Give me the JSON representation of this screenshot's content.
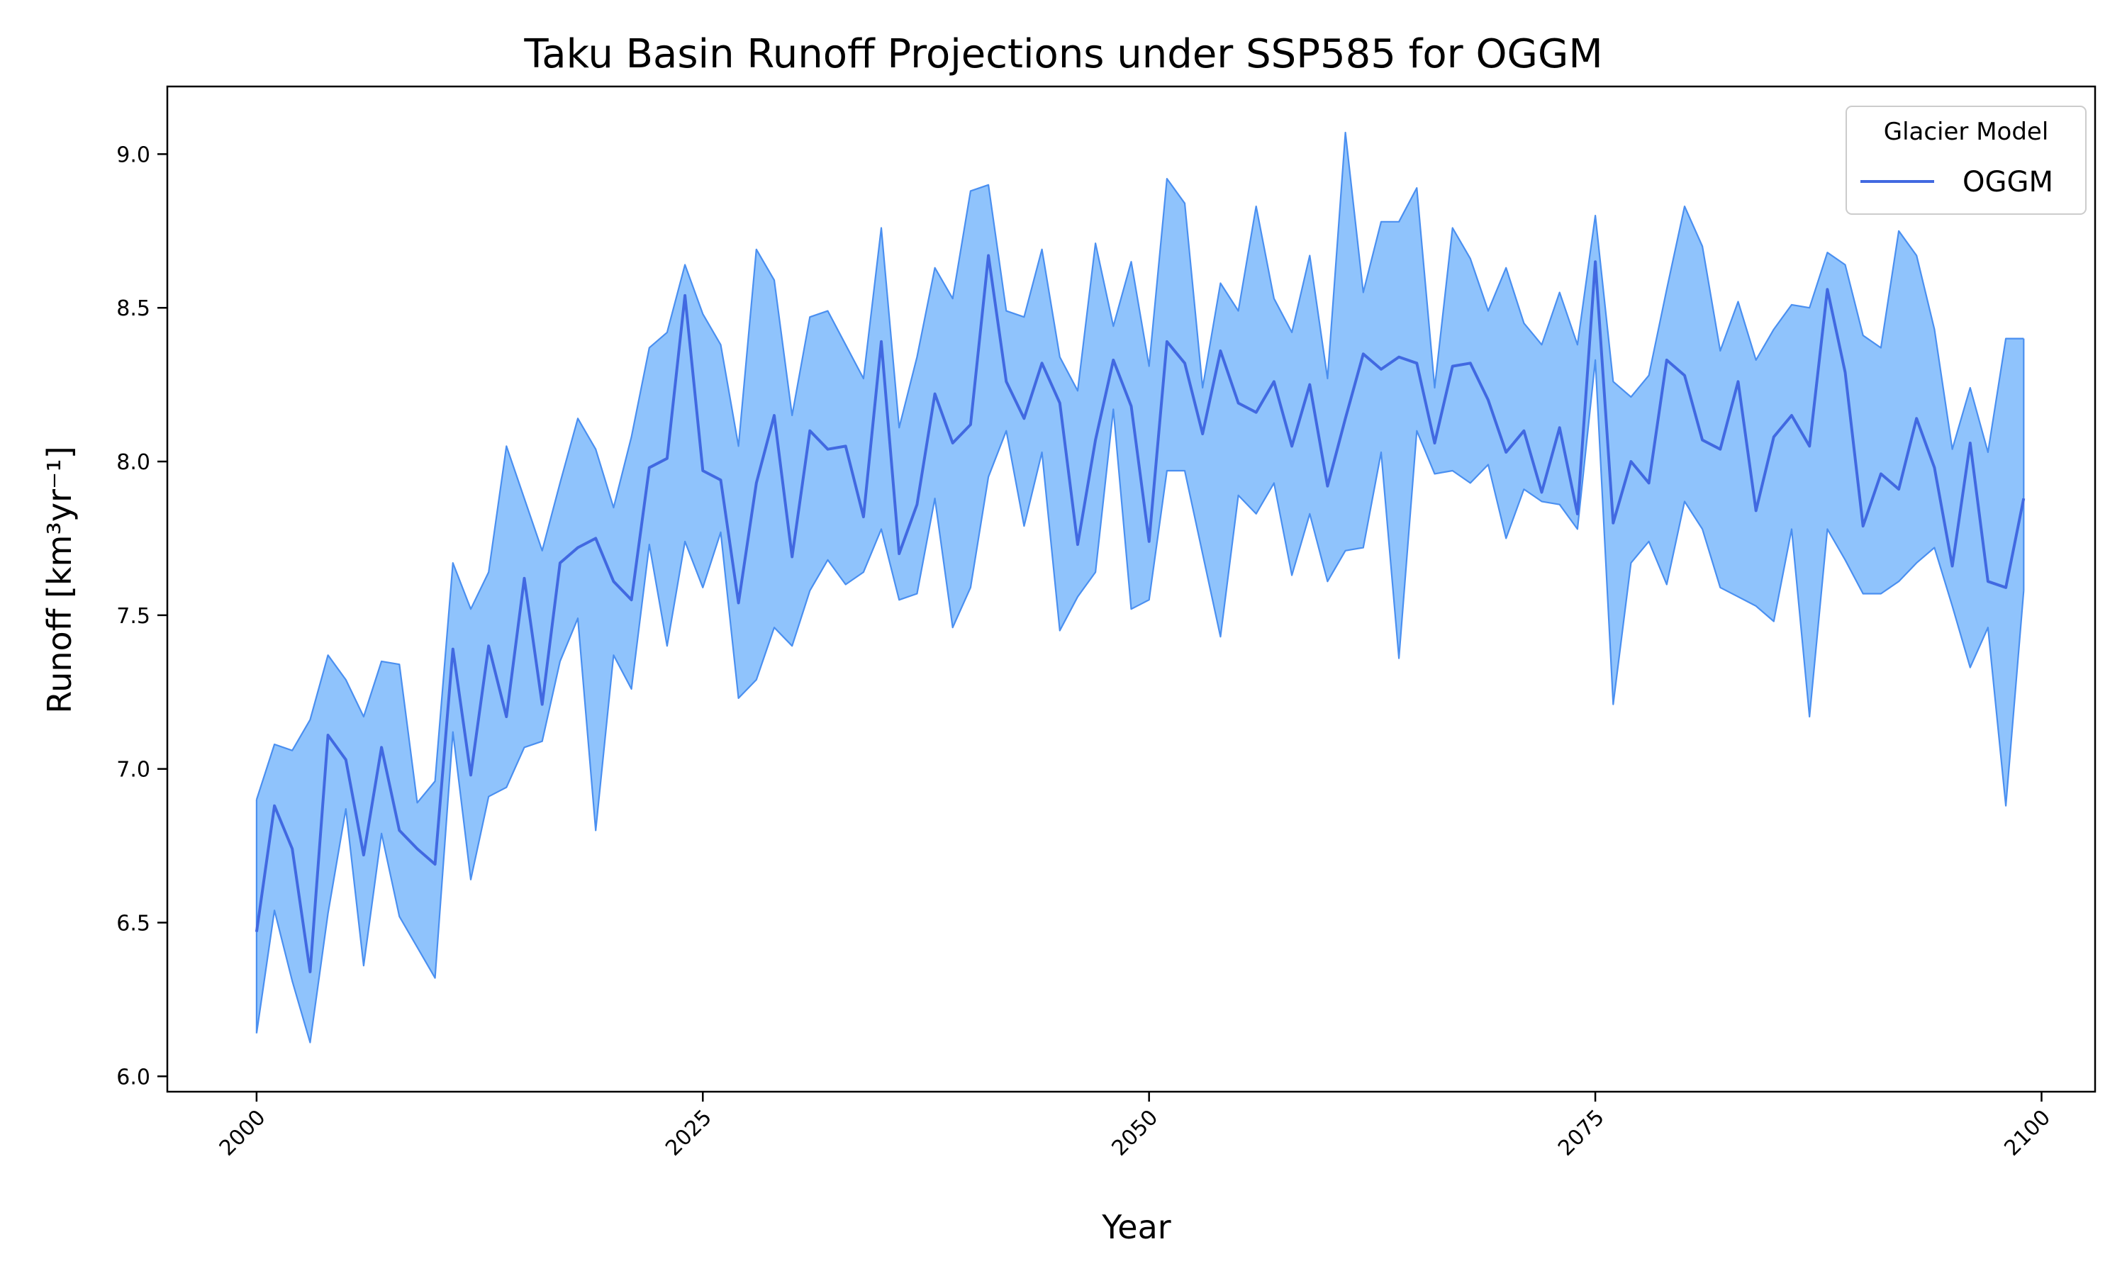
{
  "chart_data": {
    "type": "line",
    "title": "Taku Basin Runoff Projections under SSP585 for OGGM",
    "xlabel": "Year",
    "ylabel": "Runoff [km³yr⁻¹]",
    "xlim": [
      1995,
      2103
    ],
    "ylim": [
      5.95,
      9.22
    ],
    "xticks": [
      2000,
      2025,
      2050,
      2075,
      2100
    ],
    "yticks": [
      6.0,
      6.5,
      7.0,
      7.5,
      8.0,
      8.5,
      9.0
    ],
    "grid": false,
    "legend": {
      "title": "Glacier Model",
      "placement": "top-right"
    },
    "colors": {
      "line": "#4169e1",
      "band_fill": "#8fc3fc",
      "band_edge": "#4a8ff0"
    },
    "x": [
      2000,
      2001,
      2002,
      2003,
      2004,
      2005,
      2006,
      2007,
      2008,
      2009,
      2010,
      2011,
      2012,
      2013,
      2014,
      2015,
      2016,
      2017,
      2018,
      2019,
      2020,
      2021,
      2022,
      2023,
      2024,
      2025,
      2026,
      2027,
      2028,
      2029,
      2030,
      2031,
      2032,
      2033,
      2034,
      2035,
      2036,
      2037,
      2038,
      2039,
      2040,
      2041,
      2042,
      2043,
      2044,
      2045,
      2046,
      2047,
      2048,
      2049,
      2050,
      2051,
      2052,
      2053,
      2054,
      2055,
      2056,
      2057,
      2058,
      2059,
      2060,
      2061,
      2062,
      2063,
      2064,
      2065,
      2066,
      2067,
      2068,
      2069,
      2070,
      2071,
      2072,
      2073,
      2074,
      2075,
      2076,
      2077,
      2078,
      2079,
      2080,
      2081,
      2082,
      2083,
      2084,
      2085,
      2086,
      2087,
      2088,
      2089,
      2090,
      2091,
      2092,
      2093,
      2094,
      2095,
      2096,
      2097,
      2098,
      2099
    ],
    "series": [
      {
        "name": "OGGM",
        "values": [
          6.47,
          6.88,
          6.74,
          6.34,
          7.11,
          7.03,
          6.72,
          7.07,
          6.8,
          6.74,
          6.69,
          7.39,
          6.98,
          7.4,
          7.17,
          7.62,
          7.21,
          7.67,
          7.72,
          7.75,
          7.61,
          7.55,
          7.98,
          8.01,
          8.54,
          7.97,
          7.94,
          7.54,
          7.93,
          8.15,
          7.69,
          8.1,
          8.04,
          8.05,
          7.82,
          8.39,
          7.7,
          7.86,
          8.22,
          8.06,
          8.12,
          8.67,
          8.26,
          8.14,
          8.32,
          8.19,
          7.73,
          8.07,
          8.33,
          8.18,
          7.74,
          8.39,
          8.32,
          8.09,
          8.36,
          8.19,
          8.16,
          8.26,
          8.05,
          8.25,
          7.92,
          8.14,
          8.35,
          8.3,
          8.34,
          8.32,
          8.06,
          8.31,
          8.32,
          8.2,
          8.03,
          8.1,
          7.9,
          8.11,
          7.83,
          8.65,
          7.8,
          8.0,
          7.93,
          8.33,
          8.28,
          8.07,
          8.04,
          8.26,
          7.84,
          8.08,
          8.15,
          8.05,
          8.56,
          8.29,
          7.79,
          7.96,
          7.91,
          8.14,
          7.98,
          7.66,
          8.06,
          7.61,
          7.59,
          7.88
        ],
        "upper": [
          6.9,
          7.08,
          7.06,
          7.16,
          7.37,
          7.29,
          7.17,
          7.35,
          7.34,
          6.89,
          6.96,
          7.67,
          7.52,
          7.64,
          8.05,
          7.88,
          7.71,
          7.93,
          8.14,
          8.04,
          7.85,
          8.08,
          8.37,
          8.42,
          8.64,
          8.48,
          8.38,
          8.05,
          8.69,
          8.59,
          8.15,
          8.47,
          8.49,
          8.38,
          8.27,
          8.76,
          8.11,
          8.34,
          8.63,
          8.53,
          8.88,
          8.9,
          8.49,
          8.47,
          8.69,
          8.34,
          8.23,
          8.71,
          8.44,
          8.65,
          8.31,
          8.92,
          8.84,
          8.24,
          8.58,
          8.49,
          8.83,
          8.53,
          8.42,
          8.67,
          8.27,
          9.07,
          8.55,
          8.78,
          8.78,
          8.89,
          8.24,
          8.76,
          8.66,
          8.49,
          8.63,
          8.45,
          8.38,
          8.55,
          8.38,
          8.8,
          8.26,
          8.21,
          8.28,
          8.56,
          8.83,
          8.7,
          8.36,
          8.52,
          8.33,
          8.43,
          8.51,
          8.5,
          8.68,
          8.64,
          8.41,
          8.37,
          8.75,
          8.67,
          8.43,
          8.04,
          8.24,
          8.03,
          8.4,
          8.4
        ],
        "lower": [
          6.14,
          6.54,
          6.31,
          6.11,
          6.53,
          6.87,
          6.36,
          6.79,
          6.52,
          6.42,
          6.32,
          7.12,
          6.64,
          6.91,
          6.94,
          7.07,
          7.09,
          7.35,
          7.49,
          6.8,
          7.37,
          7.26,
          7.73,
          7.4,
          7.74,
          7.59,
          7.77,
          7.23,
          7.29,
          7.46,
          7.4,
          7.58,
          7.68,
          7.6,
          7.64,
          7.78,
          7.55,
          7.57,
          7.88,
          7.46,
          7.59,
          7.95,
          8.1,
          7.79,
          8.03,
          7.45,
          7.56,
          7.64,
          8.17,
          7.52,
          7.55,
          7.97,
          7.97,
          7.7,
          7.43,
          7.89,
          7.83,
          7.93,
          7.63,
          7.83,
          7.61,
          7.71,
          7.72,
          8.03,
          7.36,
          8.1,
          7.96,
          7.97,
          7.93,
          7.99,
          7.75,
          7.91,
          7.87,
          7.86,
          7.78,
          8.33,
          7.21,
          7.67,
          7.74,
          7.6,
          7.87,
          7.78,
          7.59,
          7.56,
          7.53,
          7.48,
          7.78,
          7.17,
          7.78,
          7.68,
          7.57,
          7.57,
          7.61,
          7.67,
          7.72,
          7.53,
          7.33,
          7.46,
          6.88,
          7.58
        ]
      }
    ]
  }
}
